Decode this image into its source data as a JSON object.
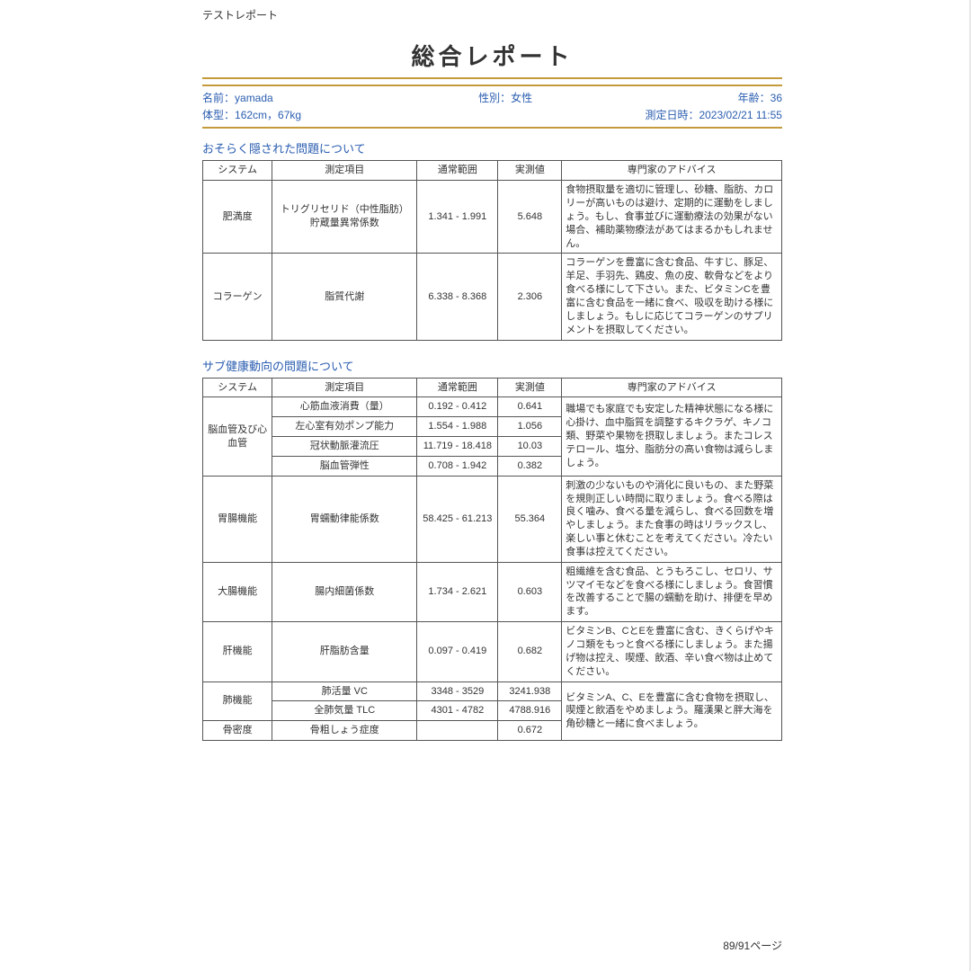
{
  "header_label": "テストレポート",
  "title": "総合レポート",
  "meta": {
    "name_label": "名前：",
    "name": "yamada",
    "sex_label": "性別：",
    "sex": "女性",
    "age_label": "年齢：",
    "age": "36",
    "body_label": "体型：",
    "body": "162cm，67kg",
    "datetime_label": "測定日時：",
    "datetime": "2023/02/21 11:55"
  },
  "section1": {
    "title": "おそらく隠された問題について",
    "headers": {
      "sys": "システム",
      "item": "測定項目",
      "range": "通常範囲",
      "val": "実測値",
      "adv": "専門家のアドバイス"
    },
    "rows": [
      {
        "sys": "肥満度",
        "item": "トリグリセリド（中性脂肪）貯蔵量異常係数",
        "range": "1.341 - 1.991",
        "val": "5.648",
        "adv": "食物摂取量を適切に管理し、砂糖、脂肪、カロリーが高いものは避け、定期的に運動をしましょう。もし、食事並びに運動療法の効果がない場合、補助薬物療法があてはまるかもしれません。"
      },
      {
        "sys": "コラーゲン",
        "item": "脂質代謝",
        "range": "6.338 - 8.368",
        "val": "2.306",
        "adv": "コラーゲンを豊富に含む食品、牛すじ、豚足、羊足、手羽先、鶏皮、魚の皮、軟骨などをより食べる様にして下さい。また、ビタミンCを豊富に含む食品を一緒に食べ、吸収を助ける様にしましょう。もしに応じてコラーゲンのサプリメントを摂取してください。"
      }
    ]
  },
  "section2": {
    "title": "サブ健康動向の問題について",
    "headers": {
      "sys": "システム",
      "item": "測定項目",
      "range": "通常範囲",
      "val": "実測値",
      "adv": "専門家のアドバイス"
    },
    "groups": [
      {
        "sys": "脳血管及び心血管",
        "rows": [
          {
            "item": "心筋血液消費（量）",
            "range": "0.192 - 0.412",
            "val": "0.641"
          },
          {
            "item": "左心室有効ポンプ能力",
            "range": "1.554 - 1.988",
            "val": "1.056"
          },
          {
            "item": "冠状動脈灌流圧",
            "range": "11.719 - 18.418",
            "val": "10.03"
          },
          {
            "item": "脳血管弾性",
            "range": "0.708 - 1.942",
            "val": "0.382"
          }
        ],
        "adv": "職場でも家庭でも安定した精神状態になる様に心掛け、血中脂質を調整するキクラゲ、キノコ類、野菜や果物を摂取しましょう。またコレステロール、塩分、脂肪分の高い食物は減らしましょう。"
      },
      {
        "sys": "胃腸機能",
        "rows": [
          {
            "item": "胃蠕動律能係数",
            "range": "58.425 - 61.213",
            "val": "55.364"
          }
        ],
        "adv": "刺激の少ないものや消化に良いもの、また野菜を規則正しい時間に取りましょう。食べる際は良く噛み、食べる量を減らし、食べる回数を増やしましょう。また食事の時はリラックスし、楽しい事と休むことを考えてください。冷たい食事は控えてください。"
      },
      {
        "sys": "大腸機能",
        "rows": [
          {
            "item": "腸内細菌係数",
            "range": "1.734 - 2.621",
            "val": "0.603"
          }
        ],
        "adv": "粗繊維を含む食品、とうもろこし、セロリ、サツマイモなどを食べる様にしましょう。食習慣を改善することで腸の蠕動を助け、排便を早めます。"
      },
      {
        "sys": "肝機能",
        "rows": [
          {
            "item": "肝脂肪含量",
            "range": "0.097 - 0.419",
            "val": "0.682"
          }
        ],
        "adv": "ビタミンB、CとEを豊富に含む、きくらげやキノコ類をもっと食べる様にしましょう。また揚げ物は控え、喫煙、飲酒、辛い食べ物は止めてください。"
      },
      {
        "sys": "肺機能",
        "rows": [
          {
            "item": "肺活量 VC",
            "range": "3348 - 3529",
            "val": "3241.938"
          },
          {
            "item": "全肺気量 TLC",
            "range": "4301 - 4782",
            "val": "4788.916"
          }
        ],
        "adv": "ビタミンA、C、Eを豊富に含む食物を摂取し、喫煙と飲酒をやめましょう。羅漢果と胖大海を角砂糖と一緒に食べましょう。"
      },
      {
        "sys": "骨密度",
        "rows": [
          {
            "item": "骨粗しょう症度",
            "range": "",
            "val": "0.672"
          }
        ],
        "adv": ""
      }
    ]
  },
  "page_number": "89/91ページ",
  "colors": {
    "accent_rule": "#c49a3a",
    "meta_text": "#2a5db0",
    "border": "#555555"
  }
}
